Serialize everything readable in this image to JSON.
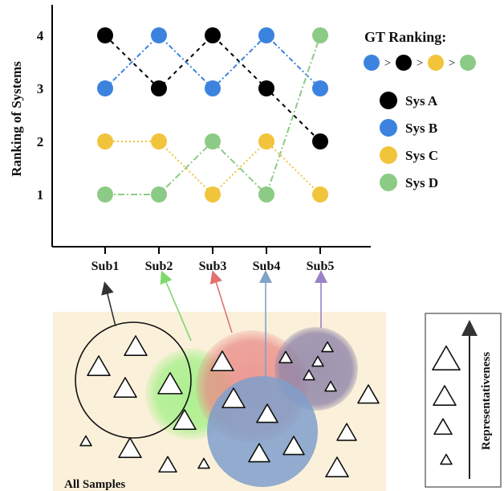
{
  "chart_data": {
    "type": "line",
    "ylabel": "Ranking of Systems",
    "categories": [
      "Sub1",
      "Sub2",
      "Sub3",
      "Sub4",
      "Sub5"
    ],
    "y_ticks": [
      "1",
      "2",
      "3",
      "4"
    ],
    "ylim": [
      0.2,
      4.6
    ],
    "series": [
      {
        "name": "Sys A",
        "color": "#000000",
        "dash": "5,5",
        "values": [
          4,
          3,
          4,
          3,
          2
        ]
      },
      {
        "name": "Sys B",
        "color": "#3b83de",
        "dash": "6,3,2,3",
        "values": [
          3,
          4,
          3,
          4,
          3
        ]
      },
      {
        "name": "Sys C",
        "color": "#f2c43c",
        "dash": "2,3",
        "values": [
          2,
          2,
          1,
          2,
          1
        ]
      },
      {
        "name": "Sys D",
        "color": "#8ccb85",
        "dash": "8,3,2,3",
        "values": [
          1,
          1,
          2,
          1,
          4
        ]
      }
    ]
  },
  "legend": {
    "gt_title": "GT Ranking:",
    "gt_separator": ">",
    "gt_order_colors": [
      "#3b83de",
      "#000000",
      "#f2c43c",
      "#8ccb85"
    ]
  },
  "diagram": {
    "samples_label": "All Samples",
    "representativeness_label": "Representativeness",
    "subset_colors": {
      "Sub1": "#333333",
      "Sub2": "#7fd86b",
      "Sub3": "#e2706e",
      "Sub4": "#7ea2c8",
      "Sub5": "#9a82c6"
    }
  }
}
